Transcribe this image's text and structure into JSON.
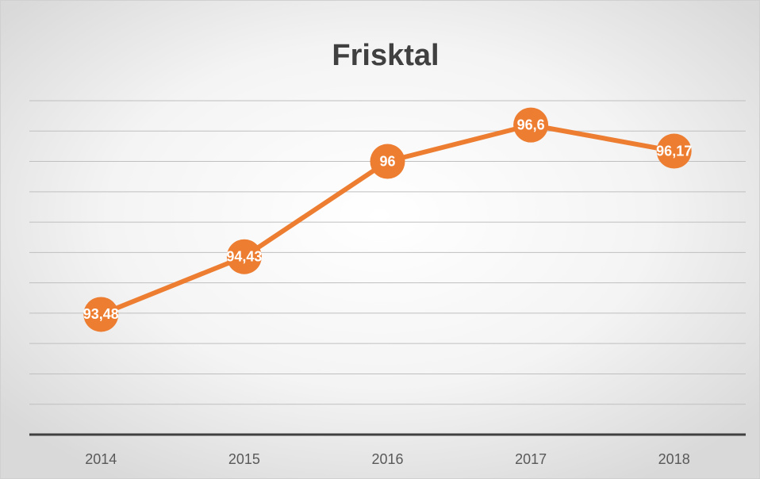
{
  "chart_data": {
    "type": "line",
    "title": "Frisktal",
    "categories": [
      "2014",
      "2015",
      "2016",
      "2017",
      "2018"
    ],
    "series": [
      {
        "name": "Frisktal",
        "color": "#ed7d31",
        "values": [
          93.48,
          94.43,
          96,
          96.6,
          96.17
        ],
        "value_labels": [
          "93,48",
          "94,43",
          "96",
          "96,6",
          "96,17"
        ]
      }
    ],
    "ylim": [
      91.5,
      97
    ],
    "yticks": [
      91.5,
      92,
      92.5,
      93,
      93.5,
      94,
      94.5,
      95,
      95.5,
      96,
      96.5,
      97
    ],
    "grid": true
  }
}
